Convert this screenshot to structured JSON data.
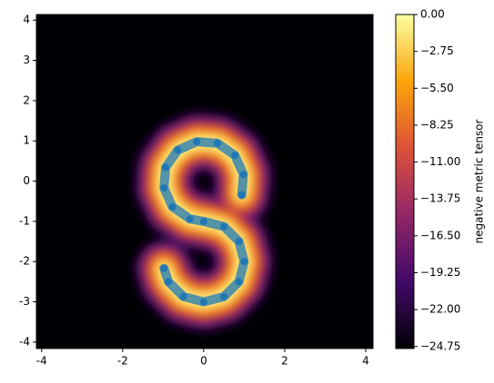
{
  "chart_data": {
    "type": "scatter",
    "colorbar_label": "negative metric tensor",
    "x": [
      0.94,
      0.98,
      0.77,
      0.34,
      -0.17,
      -0.64,
      -0.94,
      -0.98,
      -0.77,
      -0.34,
      0,
      0.5,
      0.87,
      1,
      0.87,
      0.5,
      0,
      -0.5,
      -0.87,
      -0.98
    ],
    "y": [
      -0.34,
      0.17,
      0.64,
      0.94,
      0.98,
      0.77,
      0.34,
      -0.17,
      -0.64,
      -0.94,
      -1,
      -1.13,
      -1.5,
      -2,
      -2.5,
      -2.87,
      -3,
      -2.87,
      -2.5,
      -2.17
    ],
    "color": "#1f77b4",
    "xlim": [
      -4.13,
      4.18
    ],
    "ylim": [
      -4.16,
      4.14
    ],
    "xticks": [
      -4,
      -2,
      0,
      2,
      4
    ],
    "yticks": [
      -4,
      -3,
      -2,
      -1,
      0,
      1,
      2,
      3,
      4
    ],
    "clim": [
      -24.9,
      0
    ],
    "cticks": [
      {
        "value": 0,
        "label": "0.00"
      },
      {
        "value": -2.75,
        "label": "−2.75"
      },
      {
        "value": -5.5,
        "label": "−5.50"
      },
      {
        "value": -8.25,
        "label": "−8.25"
      },
      {
        "value": -11,
        "label": "−11.00"
      },
      {
        "value": -13.75,
        "label": "−13.75"
      },
      {
        "value": -16.5,
        "label": "−16.50"
      },
      {
        "value": -19.25,
        "label": "−19.25"
      },
      {
        "value": -22,
        "label": "−22.00"
      },
      {
        "value": -24.75,
        "label": "−24.75"
      }
    ],
    "colormap": [
      "#000004",
      "#420a68",
      "#932667",
      "#dd513a",
      "#fca50a",
      "#fcffa4"
    ]
  }
}
